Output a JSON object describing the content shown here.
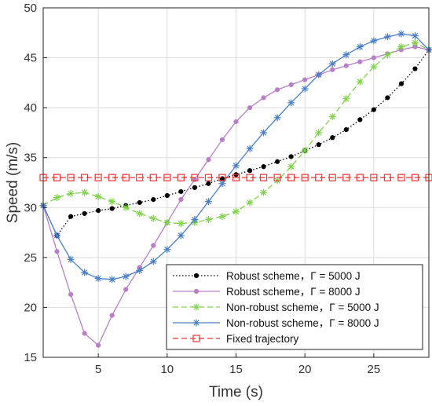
{
  "chart_data": {
    "type": "line",
    "xlabel": "Time (s)",
    "ylabel": "Speed (m/s)",
    "xlim": [
      1,
      29
    ],
    "ylim": [
      15,
      50
    ],
    "xticks": [
      5,
      10,
      15,
      20,
      25
    ],
    "yticks": [
      15,
      20,
      25,
      30,
      35,
      40,
      45,
      50
    ],
    "grid": true,
    "legend_position": "bottom-right",
    "x": [
      1,
      2,
      3,
      4,
      5,
      6,
      7,
      8,
      9,
      10,
      11,
      12,
      13,
      14,
      15,
      16,
      17,
      18,
      19,
      20,
      21,
      22,
      23,
      24,
      25,
      26,
      27,
      28,
      29
    ],
    "series": [
      {
        "name": "Robust scheme，Γ = 5000 J",
        "color": "#000000",
        "line_style": "dotted",
        "marker": "dot",
        "values": [
          30.2,
          27.2,
          29.1,
          29.4,
          29.7,
          29.9,
          30.2,
          30.5,
          30.8,
          31.2,
          31.6,
          32.0,
          32.4,
          32.9,
          33.3,
          33.7,
          34.1,
          34.6,
          35.1,
          35.7,
          36.3,
          37.0,
          37.8,
          38.8,
          39.8,
          41.0,
          42.4,
          43.9,
          45.8
        ]
      },
      {
        "name": "Robust scheme，Γ = 8000 J",
        "color": "#b87fc8",
        "line_style": "solid",
        "marker": "dot",
        "values": [
          30.2,
          25.6,
          21.3,
          17.4,
          16.2,
          19.2,
          21.8,
          24.0,
          26.2,
          28.5,
          30.8,
          32.8,
          34.8,
          36.8,
          38.6,
          40.0,
          41.0,
          41.8,
          42.3,
          42.8,
          43.3,
          43.8,
          44.2,
          44.6,
          45.0,
          45.4,
          45.8,
          46.1,
          45.8
        ]
      },
      {
        "name": "Non-robust scheme，Γ = 5000 J",
        "color": "#7fd24a",
        "line_style": "dashed",
        "marker": "star",
        "values": [
          30.2,
          31.0,
          31.4,
          31.5,
          31.1,
          30.6,
          30.0,
          29.4,
          28.9,
          28.5,
          28.4,
          28.5,
          28.8,
          29.1,
          29.6,
          30.5,
          31.5,
          32.7,
          34.1,
          35.7,
          37.5,
          39.1,
          40.9,
          42.6,
          44.1,
          45.3,
          46.1,
          46.5,
          45.8
        ]
      },
      {
        "name": "Non-robust scheme，Γ = 8000 J",
        "color": "#4a7fc8",
        "line_style": "solid",
        "marker": "star",
        "values": [
          30.2,
          27.2,
          24.8,
          23.5,
          22.9,
          22.8,
          23.1,
          23.7,
          24.6,
          25.8,
          27.2,
          28.8,
          30.6,
          32.4,
          34.2,
          35.9,
          37.5,
          39.0,
          40.5,
          41.9,
          43.3,
          44.4,
          45.3,
          46.1,
          46.7,
          47.1,
          47.4,
          47.2,
          45.8
        ]
      },
      {
        "name": "Fixed trajectory",
        "color": "#ee3333",
        "line_style": "dashed",
        "marker": "square",
        "values": [
          33,
          33,
          33,
          33,
          33,
          33,
          33,
          33,
          33,
          33,
          33,
          33,
          33,
          33,
          33,
          33,
          33,
          33,
          33,
          33,
          33,
          33,
          33,
          33,
          33,
          33,
          33,
          33,
          33
        ]
      }
    ]
  }
}
